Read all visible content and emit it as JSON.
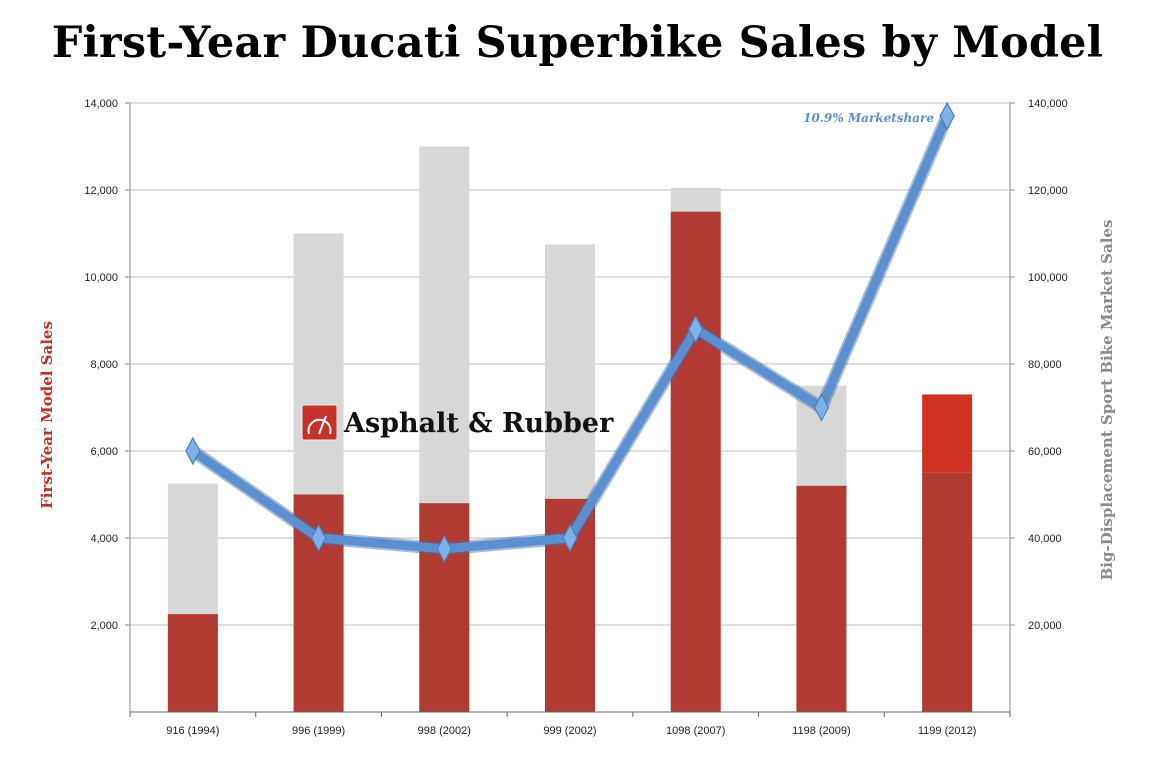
{
  "title": "First-Year Ducati Superbike Sales by Model",
  "watermark": "Asphalt & Rubber",
  "colors": {
    "ducati_bar": "#b13a33",
    "ducati_bar_highlight": "#d23223",
    "market_bar": "#d7d7d7",
    "line": "#5b8fd0",
    "left_axis_label": "#c0302b",
    "right_axis_label": "#8a8a8a"
  },
  "chart_data": {
    "type": "bar",
    "categories": [
      "916 (1994)",
      "996 (1999)",
      "998 (2002)",
      "999 (2002)",
      "1098 (2007)",
      "1198 (2009)",
      "1199 (2012)"
    ],
    "ylabel": "First-Year Model Sales",
    "y2label": "Big-Displacement Sport Bike Market Sales",
    "ylim": [
      0,
      14000
    ],
    "y2lim": [
      0,
      140000
    ],
    "yticks": [
      "2,000",
      "4,000",
      "6,000",
      "8,000",
      "10,000",
      "12,000",
      "14,000"
    ],
    "y2ticks": [
      "20,000",
      "40,000",
      "60,000",
      "80,000",
      "100,000",
      "120,000",
      "140,000"
    ],
    "grid": true,
    "series": [
      {
        "name": "First-Year Model Sales",
        "axis": "left",
        "type": "bar",
        "values": [
          2250,
          5000,
          4800,
          4900,
          11500,
          5200,
          7300
        ]
      },
      {
        "name": "Big-Displacement Sport Bike Market Sales",
        "axis": "left",
        "type": "bar",
        "values": [
          5250,
          11000,
          13000,
          10750,
          12050,
          7500,
          5500
        ]
      },
      {
        "name": "Market Share",
        "axis": "left",
        "type": "line",
        "values": [
          6000,
          4000,
          3750,
          4000,
          8800,
          7000,
          13700
        ]
      }
    ],
    "annotations": [
      {
        "text": "10.9% Marketshare",
        "category": "1199 (2012)"
      }
    ]
  }
}
